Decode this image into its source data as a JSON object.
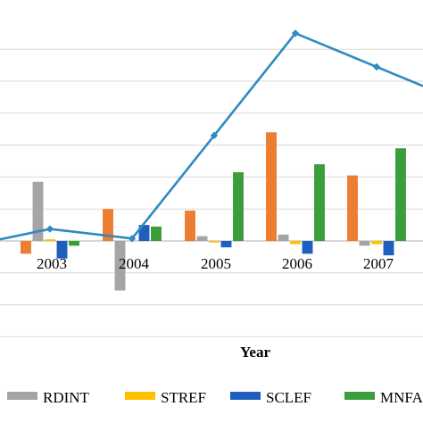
{
  "chart_data": {
    "type": "bar",
    "categories": [
      "2003",
      "2004",
      "2005",
      "2006",
      "2007"
    ],
    "xlabel": "Year",
    "ylim": [
      -6,
      13
    ],
    "grid": true,
    "legend_position": "bottom",
    "series": [
      {
        "name": "",
        "type": "bar",
        "color": "#ED7D31",
        "values": [
          -0.8,
          2.0,
          1.9,
          6.8,
          4.1
        ]
      },
      {
        "name": "RDINT",
        "type": "bar",
        "color": "#A5A5A5",
        "values": [
          3.7,
          -3.1,
          0.3,
          0.4,
          -0.3
        ]
      },
      {
        "name": "STREF",
        "type": "bar",
        "color": "#FFC000",
        "values": [
          0.1,
          0.0,
          -0.1,
          -0.2,
          -0.2
        ]
      },
      {
        "name": "SCLEF",
        "type": "bar",
        "color": "#1F5FBF",
        "values": [
          -1.1,
          1.0,
          -0.4,
          -0.8,
          -0.9
        ]
      },
      {
        "name": "MNFA",
        "type": "bar",
        "color": "#3A9E3A",
        "values": [
          -0.3,
          0.9,
          4.3,
          4.8,
          5.8
        ]
      },
      {
        "name": "",
        "type": "line",
        "color": "#2E8BC0",
        "values": [
          0.75,
          0.15,
          6.6,
          13.0,
          10.9
        ]
      }
    ]
  }
}
